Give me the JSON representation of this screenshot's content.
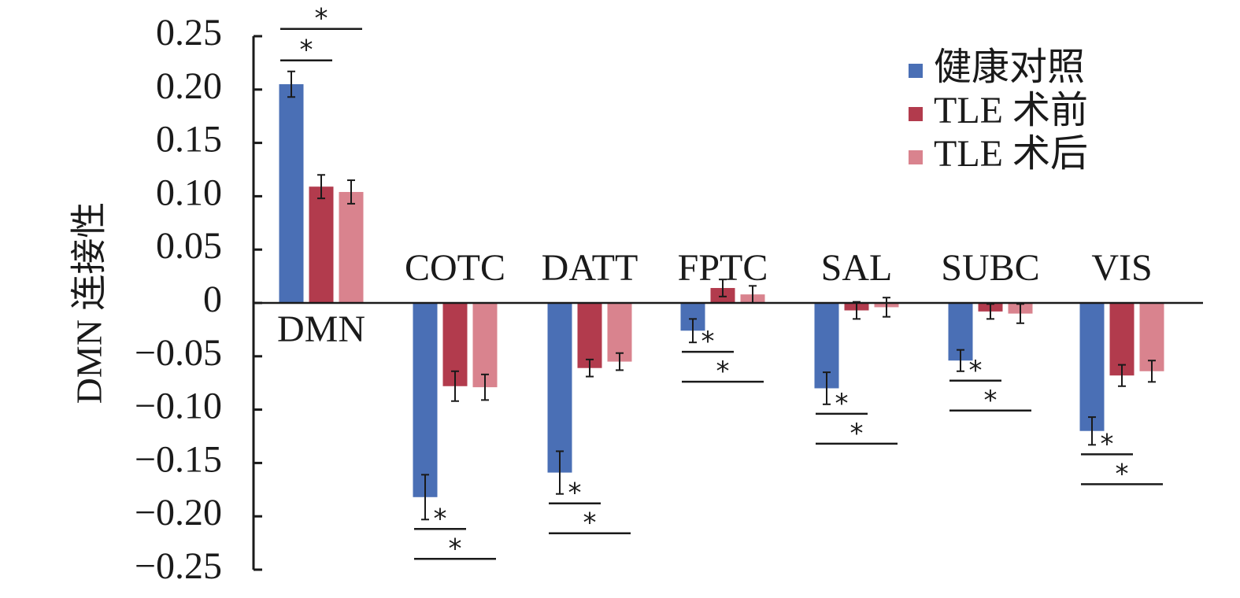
{
  "chart_data": {
    "type": "bar",
    "title": "",
    "xlabel": "",
    "ylabel": "DMN 连接性",
    "ylim": [
      -0.25,
      0.25
    ],
    "y_ticks": [
      "0.25",
      "0.20",
      "0.15",
      "0.10",
      "0.05",
      "0",
      "−0.05",
      "−0.10",
      "−0.15",
      "−0.20",
      "−0.25"
    ],
    "y_tick_values": [
      0.25,
      0.2,
      0.15,
      0.1,
      0.05,
      0,
      -0.05,
      -0.1,
      -0.15,
      -0.2,
      -0.25
    ],
    "categories": [
      "DMN",
      "COTC",
      "DATT",
      "FPTC",
      "SAL",
      "SUBC",
      "VIS"
    ],
    "legend_position": "top-right",
    "grid": false,
    "significance_marker": "*",
    "series": [
      {
        "name": "健康对照",
        "color": "#4A6FB5",
        "values": [
          0.205,
          -0.182,
          -0.159,
          -0.026,
          -0.08,
          -0.054,
          -0.12
        ],
        "errors": [
          0.012,
          0.021,
          0.02,
          0.011,
          0.015,
          0.01,
          0.013
        ]
      },
      {
        "name": "TLE 术前",
        "color": "#B23B4D",
        "values": [
          0.109,
          -0.078,
          -0.061,
          0.014,
          -0.007,
          -0.008,
          -0.068
        ],
        "errors": [
          0.011,
          0.014,
          0.008,
          0.008,
          0.008,
          0.007,
          0.01
        ]
      },
      {
        "name": "TLE 术后",
        "color": "#D9838E",
        "values": [
          0.104,
          -0.079,
          -0.055,
          0.008,
          -0.004,
          -0.01,
          -0.064
        ],
        "errors": [
          0.011,
          0.012,
          0.008,
          0.008,
          0.009,
          0.009,
          0.01
        ]
      }
    ],
    "significance": [
      {
        "category": "DMN",
        "pairs": [
          [
            0,
            1
          ],
          [
            0,
            2
          ]
        ]
      },
      {
        "category": "COTC",
        "pairs": [
          [
            0,
            1
          ],
          [
            0,
            2
          ]
        ]
      },
      {
        "category": "DATT",
        "pairs": [
          [
            0,
            1
          ],
          [
            0,
            2
          ]
        ]
      },
      {
        "category": "FPTC",
        "pairs": [
          [
            0,
            1
          ],
          [
            0,
            2
          ]
        ]
      },
      {
        "category": "SAL",
        "pairs": [
          [
            0,
            1
          ],
          [
            0,
            2
          ]
        ]
      },
      {
        "category": "SUBC",
        "pairs": [
          [
            0,
            1
          ],
          [
            0,
            2
          ]
        ]
      },
      {
        "category": "VIS",
        "pairs": [
          [
            0,
            1
          ],
          [
            0,
            2
          ]
        ]
      }
    ]
  }
}
